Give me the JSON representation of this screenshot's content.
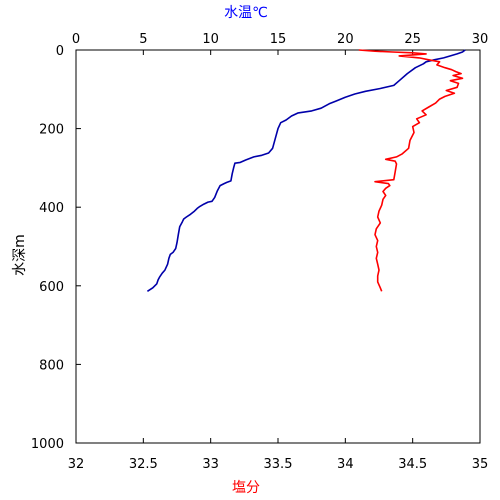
{
  "chart_data": {
    "type": "line",
    "title": "",
    "axes": {
      "y": {
        "label": "水深m",
        "range": [
          1000,
          0
        ],
        "ticks": [
          0,
          200,
          400,
          600,
          800,
          1000
        ],
        "inverted": true
      },
      "x_top": {
        "label": "水温℃",
        "color": "#0000ff",
        "range": [
          0,
          30
        ],
        "ticks": [
          0,
          5,
          10,
          15,
          20,
          25,
          30
        ]
      },
      "x_bottom": {
        "label": "塩分",
        "color": "#ff0000",
        "range": [
          32,
          35
        ],
        "ticks": [
          32,
          32.5,
          33,
          33.5,
          34,
          34.5,
          35
        ]
      }
    },
    "grid": false,
    "legend": "none",
    "series": [
      {
        "axis": "x_top",
        "color": "#0000aa",
        "points": [
          [
            28.9,
            0
          ],
          [
            28.7,
            5
          ],
          [
            28.3,
            10
          ],
          [
            27.8,
            15
          ],
          [
            27.3,
            20
          ],
          [
            26.6,
            25
          ],
          [
            26.0,
            30
          ],
          [
            25.8,
            35
          ],
          [
            25.2,
            45
          ],
          [
            24.6,
            60
          ],
          [
            24.0,
            78
          ],
          [
            23.6,
            90
          ],
          [
            22.6,
            98
          ],
          [
            21.5,
            105
          ],
          [
            20.7,
            112
          ],
          [
            20.0,
            120
          ],
          [
            19.3,
            130
          ],
          [
            18.8,
            137
          ],
          [
            18.2,
            148
          ],
          [
            17.5,
            155
          ],
          [
            16.5,
            160
          ],
          [
            16.0,
            168
          ],
          [
            15.6,
            178
          ],
          [
            15.2,
            185
          ],
          [
            15.0,
            200
          ],
          [
            14.8,
            225
          ],
          [
            14.6,
            250
          ],
          [
            14.3,
            262
          ],
          [
            13.8,
            268
          ],
          [
            13.2,
            272
          ],
          [
            12.6,
            280
          ],
          [
            12.2,
            286
          ],
          [
            11.8,
            288
          ],
          [
            11.7,
            300
          ],
          [
            11.6,
            315
          ],
          [
            11.5,
            333
          ],
          [
            11.2,
            337
          ],
          [
            11.0,
            340
          ],
          [
            10.7,
            345
          ],
          [
            10.5,
            358
          ],
          [
            10.3,
            375
          ],
          [
            10.1,
            385
          ],
          [
            9.8,
            387
          ],
          [
            9.5,
            392
          ],
          [
            9.2,
            398
          ],
          [
            9.0,
            403
          ],
          [
            8.8,
            410
          ],
          [
            8.5,
            418
          ],
          [
            8.2,
            425
          ],
          [
            8.0,
            430
          ],
          [
            7.9,
            437
          ],
          [
            7.7,
            450
          ],
          [
            7.6,
            470
          ],
          [
            7.5,
            490
          ],
          [
            7.4,
            505
          ],
          [
            7.2,
            515
          ],
          [
            7.0,
            520
          ],
          [
            6.9,
            530
          ],
          [
            6.8,
            545
          ],
          [
            6.6,
            560
          ],
          [
            6.4,
            568
          ],
          [
            6.2,
            578
          ],
          [
            6.1,
            585
          ],
          [
            6.0,
            595
          ],
          [
            5.7,
            605
          ],
          [
            5.3,
            614
          ]
        ]
      },
      {
        "axis": "x_bottom",
        "color": "#ff0000",
        "points": [
          [
            34.1,
            0
          ],
          [
            34.22,
            3
          ],
          [
            34.35,
            5
          ],
          [
            34.5,
            7
          ],
          [
            34.6,
            10
          ],
          [
            34.4,
            15
          ],
          [
            34.55,
            20
          ],
          [
            34.62,
            25
          ],
          [
            34.7,
            30
          ],
          [
            34.68,
            38
          ],
          [
            34.74,
            45
          ],
          [
            34.79,
            50
          ],
          [
            34.82,
            55
          ],
          [
            34.86,
            60
          ],
          [
            34.8,
            65
          ],
          [
            34.87,
            72
          ],
          [
            34.78,
            78
          ],
          [
            34.84,
            85
          ],
          [
            34.83,
            95
          ],
          [
            34.75,
            103
          ],
          [
            34.81,
            110
          ],
          [
            34.74,
            118
          ],
          [
            34.7,
            125
          ],
          [
            34.67,
            135
          ],
          [
            34.62,
            145
          ],
          [
            34.57,
            155
          ],
          [
            34.6,
            165
          ],
          [
            34.53,
            175
          ],
          [
            34.55,
            185
          ],
          [
            34.5,
            195
          ],
          [
            34.51,
            210
          ],
          [
            34.48,
            230
          ],
          [
            34.47,
            250
          ],
          [
            34.42,
            265
          ],
          [
            34.38,
            272
          ],
          [
            34.3,
            278
          ],
          [
            34.37,
            283
          ],
          [
            34.38,
            290
          ],
          [
            34.37,
            310
          ],
          [
            34.36,
            330
          ],
          [
            34.22,
            335
          ],
          [
            34.32,
            340
          ],
          [
            34.33,
            345
          ],
          [
            34.3,
            352
          ],
          [
            34.28,
            360
          ],
          [
            34.3,
            370
          ],
          [
            34.28,
            380
          ],
          [
            34.27,
            395
          ],
          [
            34.25,
            410
          ],
          [
            34.24,
            425
          ],
          [
            34.26,
            440
          ],
          [
            34.23,
            455
          ],
          [
            34.22,
            470
          ],
          [
            34.24,
            485
          ],
          [
            34.23,
            500
          ],
          [
            34.24,
            515
          ],
          [
            34.23,
            530
          ],
          [
            34.24,
            545
          ],
          [
            34.25,
            560
          ],
          [
            34.24,
            575
          ],
          [
            34.24,
            590
          ],
          [
            34.26,
            605
          ],
          [
            34.27,
            614
          ]
        ]
      }
    ]
  }
}
